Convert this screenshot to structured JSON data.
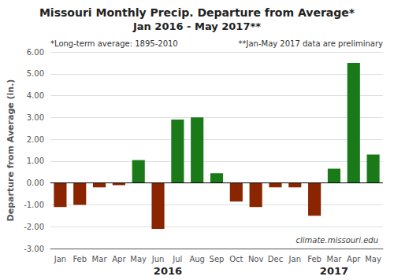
{
  "chart_data": {
    "type": "bar",
    "title": "Missouri Monthly Precip. Departure from Average*",
    "subtitle": "Jan 2016 - May 2017**",
    "ylabel": "Departure from Average (in.)",
    "annotations": [
      "*Long-term average: 1895-2010",
      "**Jan-May 2017 data are preliminary",
      "climate.missouri.edu",
      "2016",
      "2017"
    ],
    "categories": [
      "Jan",
      "Feb",
      "Mar",
      "Apr",
      "May",
      "Jun",
      "Jul",
      "Aug",
      "Sep",
      "Oct",
      "Nov",
      "Dec",
      "Jan",
      "Feb",
      "Mar",
      "Apr",
      "May"
    ],
    "values": [
      -1.1,
      -1.0,
      -0.2,
      -0.1,
      1.05,
      -2.1,
      2.9,
      3.0,
      0.45,
      -0.85,
      -1.1,
      -0.2,
      -0.2,
      -1.5,
      0.65,
      5.5,
      1.3
    ],
    "colors": [
      "#8b2500",
      "#8b2500",
      "#8b2500",
      "#8b2500",
      "#1a7a1a",
      "#8b2500",
      "#1a7a1a",
      "#1a7a1a",
      "#1a7a1a",
      "#8b2500",
      "#8b2500",
      "#8b2500",
      "#8b2500",
      "#8b2500",
      "#1a7a1a",
      "#1a7a1a",
      "#1a7a1a"
    ],
    "ylim": [
      -3.0,
      6.0
    ],
    "yticks": [
      {
        "value": -3.0,
        "label": "-3.00"
      },
      {
        "value": -2.0,
        "label": "-2.00"
      },
      {
        "value": -1.0,
        "label": "-1.00"
      },
      {
        "value": 0.0,
        "label": "0.00"
      },
      {
        "value": 1.0,
        "label": "1.00"
      },
      {
        "value": 2.0,
        "label": "2.00"
      },
      {
        "value": 3.0,
        "label": "3.00"
      },
      {
        "value": 4.0,
        "label": "4.00"
      },
      {
        "value": 5.0,
        "label": "5.00"
      },
      {
        "value": 6.0,
        "label": "6.00"
      }
    ],
    "grid": true
  }
}
